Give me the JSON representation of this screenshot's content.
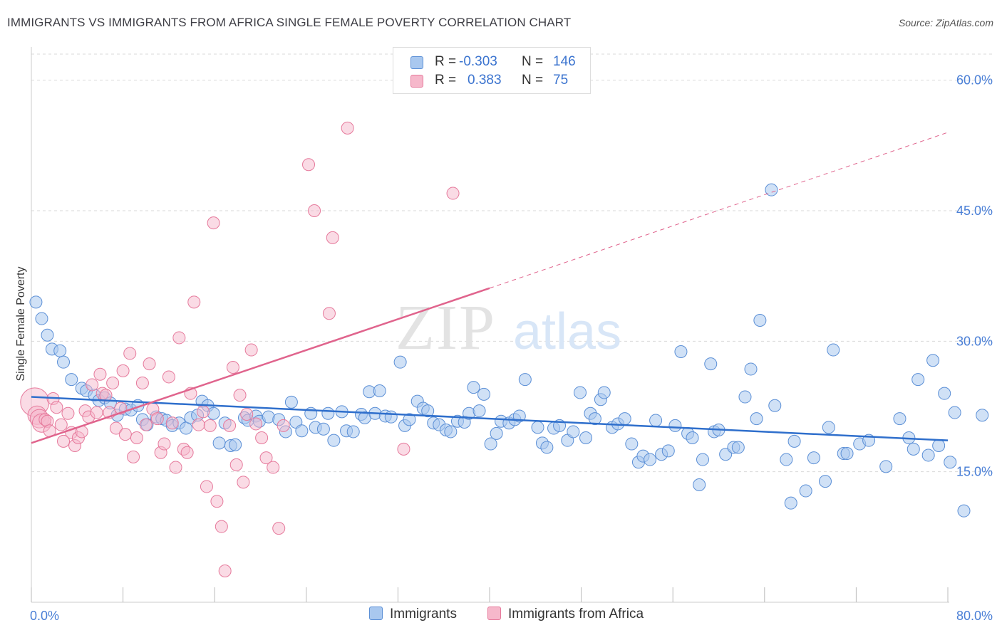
{
  "title": "IMMIGRANTS VS IMMIGRANTS FROM AFRICA SINGLE FEMALE POVERTY CORRELATION CHART",
  "source": "Source: ZipAtlas.com",
  "watermark": {
    "zip": "ZIP",
    "atlas": "atlas"
  },
  "legend_top": {
    "rows": [
      {
        "r_label": "R =",
        "r_value": "-0.303",
        "n_label": "N =",
        "n_value": "146"
      },
      {
        "r_label": "R =",
        "r_value": "0.383",
        "n_label": "N =",
        "n_value": "75"
      }
    ]
  },
  "colors": {
    "blue_fill": "#a9c8ef",
    "blue_stroke": "#5b8fd6",
    "blue_line": "#2f6fcc",
    "pink_fill": "#f6b8cb",
    "pink_stroke": "#e67a9c",
    "pink_line": "#e0648d",
    "grid": "#d9d9d9",
    "tick_text": "#4a7fd6"
  },
  "chart_data": {
    "type": "scatter",
    "title": "IMMIGRANTS VS IMMIGRANTS FROM AFRICA SINGLE FEMALE POVERTY CORRELATION CHART",
    "xlabel": "",
    "ylabel": "Single Female Poverty",
    "xlim": [
      0,
      80
    ],
    "ylim": [
      0,
      63
    ],
    "x_tick_labels": [
      "0.0%",
      "80.0%"
    ],
    "y_ticks": [
      15,
      30,
      45,
      60
    ],
    "y_tick_labels": [
      "15.0%",
      "30.0%",
      "45.0%",
      "60.0%"
    ],
    "grid": true,
    "legend_position": "top-center",
    "series": [
      {
        "name": "Immigrants",
        "color": "#a9c8ef",
        "r": -0.303,
        "n": 146,
        "trend": {
          "x0": 0,
          "y0": 23.6,
          "x1": 80,
          "y1": 18.6
        },
        "points": [
          [
            0.4,
            34.5
          ],
          [
            0.9,
            32.6
          ],
          [
            1.4,
            30.7
          ],
          [
            1.8,
            29.1
          ],
          [
            2.5,
            28.9
          ],
          [
            2.8,
            27.6
          ],
          [
            3.5,
            25.6
          ],
          [
            4.4,
            24.6
          ],
          [
            4.8,
            24.3
          ],
          [
            5.5,
            23.8
          ],
          [
            5.9,
            23.2
          ],
          [
            6.4,
            23.5
          ],
          [
            6.9,
            22.9
          ],
          [
            7.5,
            21.5
          ],
          [
            8.2,
            22.2
          ],
          [
            8.7,
            22.1
          ],
          [
            9.3,
            22.6
          ],
          [
            9.7,
            21.0
          ],
          [
            10.1,
            20.4
          ],
          [
            10.9,
            21.3
          ],
          [
            11.4,
            21.1
          ],
          [
            11.8,
            20.9
          ],
          [
            12.3,
            20.3
          ],
          [
            12.9,
            20.6
          ],
          [
            13.5,
            20.0
          ],
          [
            13.9,
            21.2
          ],
          [
            14.5,
            21.5
          ],
          [
            14.9,
            23.1
          ],
          [
            15.4,
            22.6
          ],
          [
            15.9,
            21.7
          ],
          [
            16.4,
            18.3
          ],
          [
            16.9,
            20.6
          ],
          [
            17.4,
            18.0
          ],
          [
            17.8,
            18.1
          ],
          [
            18.6,
            21.2
          ],
          [
            18.9,
            20.9
          ],
          [
            19.6,
            21.4
          ],
          [
            19.9,
            20.8
          ],
          [
            20.7,
            21.3
          ],
          [
            21.6,
            21.0
          ],
          [
            22.2,
            19.6
          ],
          [
            22.7,
            23.0
          ],
          [
            23.1,
            20.7
          ],
          [
            23.6,
            19.7
          ],
          [
            24.4,
            21.7
          ],
          [
            24.8,
            20.1
          ],
          [
            25.5,
            19.9
          ],
          [
            25.9,
            21.7
          ],
          [
            26.4,
            18.6
          ],
          [
            27.1,
            21.9
          ],
          [
            27.5,
            19.7
          ],
          [
            28.1,
            19.6
          ],
          [
            28.8,
            21.6
          ],
          [
            29.1,
            21.2
          ],
          [
            29.5,
            24.2
          ],
          [
            30.0,
            21.7
          ],
          [
            30.4,
            24.3
          ],
          [
            30.9,
            21.4
          ],
          [
            31.4,
            21.3
          ],
          [
            32.2,
            27.6
          ],
          [
            32.6,
            20.3
          ],
          [
            33.0,
            21.0
          ],
          [
            33.7,
            23.1
          ],
          [
            34.2,
            22.3
          ],
          [
            34.6,
            22.0
          ],
          [
            35.1,
            20.6
          ],
          [
            35.6,
            20.4
          ],
          [
            36.2,
            19.8
          ],
          [
            36.6,
            19.6
          ],
          [
            37.2,
            20.8
          ],
          [
            37.8,
            20.7
          ],
          [
            38.2,
            21.7
          ],
          [
            38.6,
            24.7
          ],
          [
            39.1,
            22.0
          ],
          [
            39.5,
            23.9
          ],
          [
            40.1,
            18.2
          ],
          [
            40.6,
            19.4
          ],
          [
            41.0,
            20.8
          ],
          [
            41.7,
            20.6
          ],
          [
            42.2,
            21.0
          ],
          [
            42.6,
            21.4
          ],
          [
            43.1,
            25.6
          ],
          [
            44.2,
            20.1
          ],
          [
            44.6,
            18.3
          ],
          [
            45.0,
            17.8
          ],
          [
            45.6,
            20.0
          ],
          [
            46.1,
            20.3
          ],
          [
            46.8,
            18.6
          ],
          [
            47.3,
            19.6
          ],
          [
            47.9,
            24.1
          ],
          [
            48.4,
            18.9
          ],
          [
            48.8,
            21.7
          ],
          [
            49.2,
            21.1
          ],
          [
            49.7,
            23.3
          ],
          [
            50.0,
            24.1
          ],
          [
            50.7,
            20.1
          ],
          [
            51.2,
            20.5
          ],
          [
            51.8,
            21.1
          ],
          [
            52.4,
            18.2
          ],
          [
            53.0,
            16.1
          ],
          [
            53.4,
            16.8
          ],
          [
            54.0,
            16.4
          ],
          [
            54.5,
            20.9
          ],
          [
            55.0,
            17.0
          ],
          [
            55.6,
            17.4
          ],
          [
            56.2,
            20.3
          ],
          [
            56.7,
            28.8
          ],
          [
            57.3,
            19.4
          ],
          [
            57.7,
            18.9
          ],
          [
            58.3,
            13.5
          ],
          [
            58.6,
            16.4
          ],
          [
            59.3,
            27.4
          ],
          [
            59.6,
            19.6
          ],
          [
            60.0,
            19.8
          ],
          [
            60.6,
            17.0
          ],
          [
            61.3,
            17.8
          ],
          [
            61.7,
            17.8
          ],
          [
            62.3,
            23.6
          ],
          [
            62.8,
            26.8
          ],
          [
            63.3,
            21.1
          ],
          [
            63.6,
            32.4
          ],
          [
            64.6,
            47.4
          ],
          [
            64.9,
            22.6
          ],
          [
            65.9,
            16.4
          ],
          [
            66.3,
            11.4
          ],
          [
            66.6,
            18.5
          ],
          [
            67.6,
            12.8
          ],
          [
            68.3,
            16.6
          ],
          [
            69.3,
            13.9
          ],
          [
            69.6,
            20.1
          ],
          [
            70.0,
            29.0
          ],
          [
            70.9,
            17.1
          ],
          [
            71.2,
            17.1
          ],
          [
            72.3,
            18.2
          ],
          [
            73.1,
            18.6
          ],
          [
            74.6,
            15.6
          ],
          [
            75.8,
            21.1
          ],
          [
            76.6,
            18.9
          ],
          [
            77.0,
            17.6
          ],
          [
            77.4,
            25.6
          ],
          [
            78.3,
            16.9
          ],
          [
            78.7,
            27.8
          ],
          [
            79.2,
            18.0
          ],
          [
            79.7,
            24.0
          ],
          [
            80.2,
            16.1
          ],
          [
            80.6,
            21.8
          ],
          [
            81.4,
            10.5
          ],
          [
            83.0,
            21.5
          ]
        ]
      },
      {
        "name": "Immigrants from Africa",
        "color": "#f6b8cb",
        "r": 0.383,
        "n": 75,
        "trend": {
          "x0": 0,
          "y0": 18.3,
          "x1": 40,
          "y1": 36.1,
          "x_dash_end": 80,
          "y_dash_end": 54.0
        },
        "points": [
          [
            0.3,
            23.0
          ],
          [
            0.5,
            21.5
          ],
          [
            0.7,
            21.1
          ],
          [
            0.9,
            20.6
          ],
          [
            1.2,
            21.0
          ],
          [
            1.4,
            20.8
          ],
          [
            1.6,
            19.7
          ],
          [
            1.9,
            23.4
          ],
          [
            2.2,
            22.4
          ],
          [
            2.6,
            20.4
          ],
          [
            2.8,
            18.5
          ],
          [
            3.2,
            21.7
          ],
          [
            3.5,
            19.5
          ],
          [
            3.8,
            18.0
          ],
          [
            4.1,
            18.9
          ],
          [
            4.4,
            19.6
          ],
          [
            4.7,
            22.0
          ],
          [
            5.0,
            21.3
          ],
          [
            5.3,
            25.0
          ],
          [
            5.7,
            21.8
          ],
          [
            6.0,
            26.2
          ],
          [
            6.2,
            24.0
          ],
          [
            6.5,
            23.8
          ],
          [
            6.8,
            21.8
          ],
          [
            7.1,
            25.2
          ],
          [
            7.4,
            20.0
          ],
          [
            7.8,
            22.3
          ],
          [
            8.0,
            26.6
          ],
          [
            8.2,
            19.3
          ],
          [
            8.6,
            28.6
          ],
          [
            8.9,
            16.7
          ],
          [
            9.2,
            18.9
          ],
          [
            9.7,
            25.2
          ],
          [
            10.0,
            20.4
          ],
          [
            10.3,
            27.4
          ],
          [
            10.6,
            22.2
          ],
          [
            11.0,
            21.1
          ],
          [
            11.3,
            17.2
          ],
          [
            11.6,
            18.2
          ],
          [
            12.0,
            25.9
          ],
          [
            12.3,
            20.6
          ],
          [
            12.6,
            15.5
          ],
          [
            12.9,
            30.4
          ],
          [
            13.3,
            17.6
          ],
          [
            13.6,
            17.2
          ],
          [
            13.9,
            24.0
          ],
          [
            14.2,
            34.5
          ],
          [
            14.6,
            20.4
          ],
          [
            15.0,
            21.9
          ],
          [
            15.3,
            13.3
          ],
          [
            15.6,
            20.3
          ],
          [
            15.9,
            43.6
          ],
          [
            16.2,
            11.6
          ],
          [
            16.6,
            8.7
          ],
          [
            16.9,
            3.6
          ],
          [
            17.3,
            20.3
          ],
          [
            17.6,
            27.0
          ],
          [
            17.9,
            15.8
          ],
          [
            18.2,
            23.8
          ],
          [
            18.5,
            13.8
          ],
          [
            18.8,
            21.6
          ],
          [
            19.2,
            29.0
          ],
          [
            19.6,
            20.5
          ],
          [
            20.1,
            18.9
          ],
          [
            20.5,
            16.6
          ],
          [
            21.1,
            15.5
          ],
          [
            21.6,
            8.5
          ],
          [
            22.0,
            20.3
          ],
          [
            24.2,
            50.3
          ],
          [
            24.7,
            45.0
          ],
          [
            26.0,
            33.2
          ],
          [
            26.3,
            41.9
          ],
          [
            27.6,
            54.5
          ],
          [
            32.5,
            17.6
          ],
          [
            36.8,
            47.0
          ]
        ]
      }
    ]
  },
  "bottom_legend": [
    {
      "label": "Immigrants"
    },
    {
      "label": "Immigrants from Africa"
    }
  ]
}
